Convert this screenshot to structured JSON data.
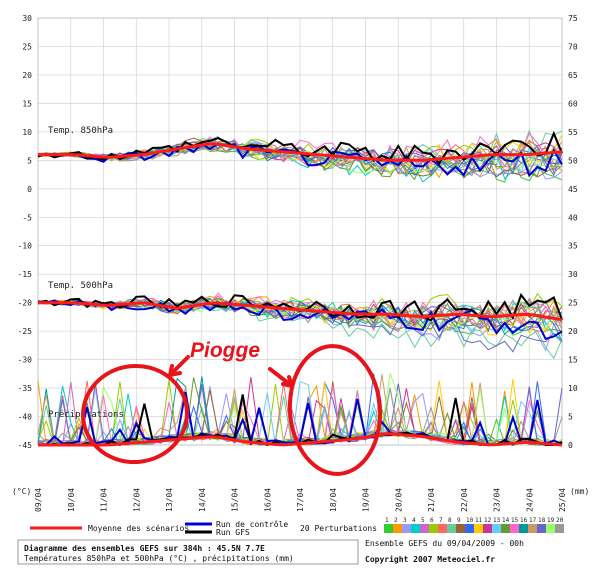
{
  "chart_data": {
    "type": "line",
    "panels": [
      {
        "label": "Temp. 850hPa",
        "scale": "left",
        "mean_series_pattern": [
          6,
          6,
          5.5,
          6,
          7,
          8,
          7,
          6.5,
          6,
          5.5,
          5,
          5,
          5.5,
          6,
          6,
          6.5
        ]
      },
      {
        "label": "Temp. 500hPa",
        "scale": "left",
        "mean_series_pattern": [
          -20,
          -20,
          -20.5,
          -20,
          -21,
          -20,
          -20.5,
          -21,
          -21.5,
          -22,
          -22,
          -22.5,
          -22,
          -22.5,
          -22,
          -23
        ]
      },
      {
        "label": "Précipitations",
        "scale": "right",
        "mean_series_pattern": [
          0,
          0,
          0,
          0.5,
          1,
          1.5,
          0.5,
          0,
          0.5,
          1,
          2,
          1.5,
          0.5,
          0,
          0.5,
          0
        ]
      }
    ],
    "left_ticks": [
      "30",
      "25",
      "20",
      "15",
      "10",
      "5",
      "0",
      "-5",
      "-10",
      "-15",
      "-20",
      "-25",
      "-30",
      "-35",
      "-40",
      "-45"
    ],
    "left_unit": "(°C)",
    "right_ticks": [
      "75",
      "70",
      "65",
      "60",
      "55",
      "50",
      "45",
      "40",
      "35",
      "30",
      "25",
      "20",
      "15",
      "10",
      "5",
      "0"
    ],
    "right_unit": "(mm)",
    "x_categories": [
      "09/04",
      "10/04",
      "11/04",
      "12/04",
      "13/04",
      "14/04",
      "15/04",
      "16/04",
      "17/04",
      "18/04",
      "19/04",
      "20/04",
      "21/04",
      "22/04",
      "23/04",
      "24/04",
      "25/04"
    ],
    "legend": {
      "mean": "Moyenne des scénarios",
      "control": "Run de contrôle",
      "gfs": "Run GFS",
      "perturbations": "20 Perturbations",
      "perturbation_numbers": [
        "1",
        "2",
        "3",
        "4",
        "5",
        "6",
        "7",
        "8",
        "9",
        "10",
        "11",
        "12",
        "13",
        "14",
        "15",
        "16",
        "17",
        "18",
        "19",
        "20"
      ]
    },
    "footer": {
      "title": "Diagramme des ensembles GEFS sur 384h : 45.5N 7.7E",
      "subtitle": "Températures 850hPa et 500hPa (°C) , précipitations (mm)",
      "run": "Ensemble GEFS du 09/04/2009 - 00h",
      "copyright": "Copyright 2007 Meteociel.fr"
    },
    "annotation": "Piogge",
    "colors": {
      "mean": "#ff1a1a",
      "control": "#0000cc",
      "gfs": "#000000",
      "annotation": "#e8141c",
      "grid": "#cccccc",
      "perturbations": [
        "#33cc33",
        "#ff9900",
        "#9999ff",
        "#00cccc",
        "#cc66cc",
        "#99cc00",
        "#ff6666",
        "#66cc99",
        "#996633",
        "#3366ff",
        "#ffcc00",
        "#cc3399",
        "#66ccff",
        "#669933",
        "#ff66cc",
        "#009999",
        "#cc9966",
        "#6666cc",
        "#99ff66",
        "#999999"
      ]
    }
  }
}
